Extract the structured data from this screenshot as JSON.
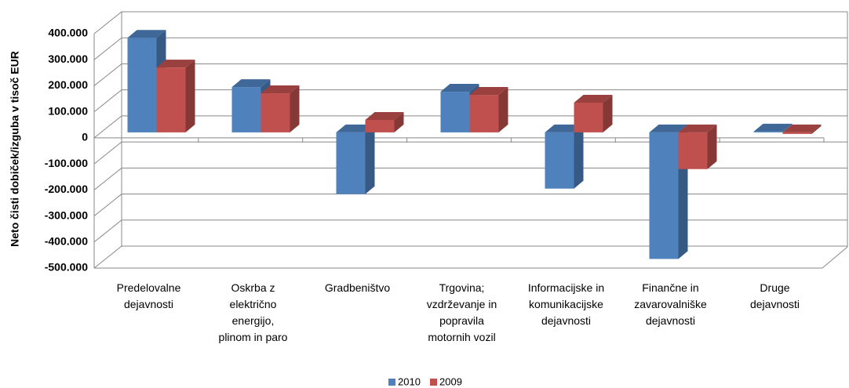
{
  "chart_data": {
    "type": "bar3d",
    "y_label": "Neto čisti dobiček/izguba  v tisoč EUR",
    "categories": [
      "Predelovalne\ndejavnosti",
      "Oskrba z\nelektrično\nenergijo,\nplinom in paro",
      "Gradbeništvo",
      "Trgovina;\nvzdrževanje in\npopravila\nmotornih vozil",
      "Informacijske in\nkomunikacijske\ndejavnosti",
      "Finančne in\nzavarovalniške\ndejavnosti",
      "Druge\ndejavnosti"
    ],
    "series": [
      {
        "name": "2010",
        "color": "#4f81bd",
        "values": [
          363000,
          174000,
          -237000,
          156000,
          -216000,
          -486000,
          3000
        ]
      },
      {
        "name": "2009",
        "color": "#c0504d",
        "values": [
          249000,
          150000,
          48000,
          144000,
          114000,
          -141000,
          -6000
        ]
      }
    ],
    "ylim": [
      -500000,
      400000
    ],
    "yticks": [
      {
        "value": -500000,
        "label": "-500.000"
      },
      {
        "value": -400000,
        "label": "-400.000"
      },
      {
        "value": -300000,
        "label": "-300.000"
      },
      {
        "value": -200000,
        "label": "-200.000"
      },
      {
        "value": -100000,
        "label": "-100.000"
      },
      0,
      {
        "value": 100000,
        "label": "100.000"
      },
      {
        "value": 200000,
        "label": "200.000"
      },
      {
        "value": 300000,
        "label": "300.000"
      },
      {
        "value": 400000,
        "label": "400.000"
      }
    ],
    "grid": true,
    "legend": "bottom"
  }
}
